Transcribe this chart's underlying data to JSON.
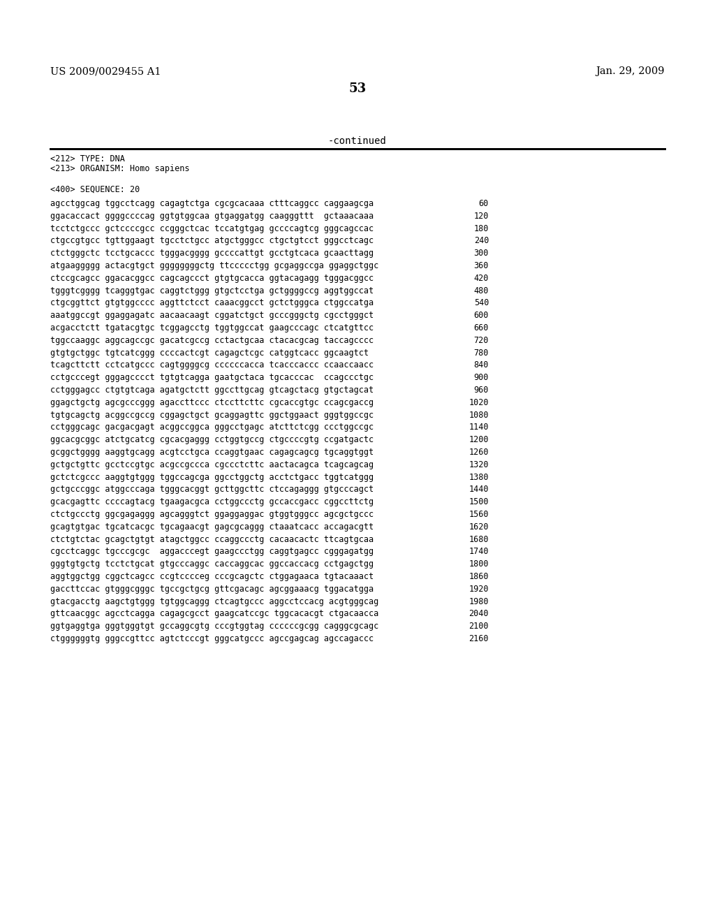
{
  "header_left": "US 2009/0029455 A1",
  "header_right": "Jan. 29, 2009",
  "page_number": "53",
  "continued_text": "-continued",
  "metadata": [
    "<212> TYPE: DNA",
    "<213> ORGANISM: Homo sapiens",
    "",
    "<400> SEQUENCE: 20"
  ],
  "sequence_lines": [
    [
      "agcctggcag tggcctcagg cagagtctga cgcgcacaaa ctttcaggcc caggaagcga",
      "60"
    ],
    [
      "ggacaccact ggggccccag ggtgtggcaa gtgaggatgg caagggttt  gctaaacaaa",
      "120"
    ],
    [
      "tcctctgccc gctccccgcc ccgggctcac tccatgtgag gccccagtcg gggcagccac",
      "180"
    ],
    [
      "ctgccgtgcc tgttggaagt tgcctctgcc atgctgggcc ctgctgtcct gggcctcagc",
      "240"
    ],
    [
      "ctctgggctc tcctgcaccc tgggacgggg gccccattgt gcctgtcaca gcaacttagg",
      "300"
    ],
    [
      "atgaaggggg actacgtgct ggggggggctg ttccccctgg gcgaggccga ggaggctggc",
      "360"
    ],
    [
      "ctccgcagcc ggacacggcc cagcagccct gtgtgcacca ggtacagagg tgggacggcc",
      "420"
    ],
    [
      "tgggtcgggg tcagggtgac caggtctggg gtgctcctga gctggggccg aggtggccat",
      "480"
    ],
    [
      "ctgcggttct gtgtggcccc aggttctcct caaacggcct gctctgggca ctggccatga",
      "540"
    ],
    [
      "aaatggccgt ggaggagatc aacaacaagt cggatctgct gcccgggctg cgcctgggct",
      "600"
    ],
    [
      "acgacctctt tgatacgtgc tcggagcctg tggtggccat gaagcccagc ctcatgttcc",
      "660"
    ],
    [
      "tggccaaggc aggcagccgc gacatcgccg cctactgcaa ctacacgcag taccagcccc",
      "720"
    ],
    [
      "gtgtgctggc tgtcatcggg ccccactcgt cagagctcgc catggtcacc ggcaagtct",
      "780"
    ],
    [
      "tcagcttctt cctcatgccc cagtggggcg ccccccacca tcacccaccc ccaaccaacc",
      "840"
    ],
    [
      "cctgcccegt gggagcccct tgtgtcagga gaatgctaca tgcacccac  ccagccctgc",
      "900"
    ],
    [
      "cctgggagcc ctgtgtcaga agatgctctt ggccttgcag gtcagctacg gtgctagcat",
      "960"
    ],
    [
      "ggagctgctg agcgcccggg agaccttccc ctccttcttc cgcaccgtgc ccagcgaccg",
      "1020"
    ],
    [
      "tgtgcagctg acggccgccg cggagctgct gcaggagttc ggctggaact gggtggccgc",
      "1080"
    ],
    [
      "cctgggcagc gacgacgagt acggccggca gggcctgagc atcttctcgg ccctggccgc",
      "1140"
    ],
    [
      "ggcacgcggc atctgcatcg cgcacgaggg cctggtgccg ctgccccgtg ccgatgactc",
      "1200"
    ],
    [
      "gcggctgggg aaggtgcagg acgtcctgca ccaggtgaac cagagcagcg tgcaggtggt",
      "1260"
    ],
    [
      "gctgctgttc gcctccgtgc acgccgccca cgccctcttc aactacagca tcagcagcag",
      "1320"
    ],
    [
      "gctctcgccc aaggtgtggg tggccagcga ggcctggctg acctctgacc tggtcatggg",
      "1380"
    ],
    [
      "gctgcccggc atggcccaga tgggcacggt gcttggcttc ctccagaggg gtgcccagct",
      "1440"
    ],
    [
      "gcacgagttc ccccagtacg tgaagacgca cctggccctg gccaccgacc cggccttctg",
      "1500"
    ],
    [
      "ctctgccctg ggcgagaggg agcagggtct ggaggaggac gtggtgggcc agcgctgccc",
      "1560"
    ],
    [
      "gcagtgtgac tgcatcacgc tgcagaacgt gagcgcaggg ctaaatcacc accagacgtt",
      "1620"
    ],
    [
      "ctctgtctac gcagctgtgt atagctggcc ccaggccctg cacaacactc ttcagtgcaa",
      "1680"
    ],
    [
      "cgcctcaggc tgcccgcgc  aggacccegt gaagccctgg caggtgagcc cgggagatgg",
      "1740"
    ],
    [
      "gggtgtgctg tcctctgcat gtgcccaggc caccaggcac ggccaccacg cctgagctgg",
      "1800"
    ],
    [
      "aggtggctgg cggctcagcc ccgtcccceg cccgcagctc ctggagaaca tgtacaaact",
      "1860"
    ],
    [
      "gaccttccac gtgggcgggc tgccgctgcg gttcgacagc agcggaaacg tggacatgga",
      "1920"
    ],
    [
      "gtacgacctg aagctgtggg tgtggcaggg ctcagtgccc aggcctccacg acgtgggcag",
      "1980"
    ],
    [
      "gttcaacggc agcctcagga cagagcgcct gaagcatccgc tggcacacgt ctgacaacca",
      "2040"
    ],
    [
      "ggtgaggtga gggtgggtgt gccaggcgtg cccgtggtag ccccccgcgg cagggcgcagc",
      "2100"
    ],
    [
      "ctggggggtg gggccgttcc agtctcccgt gggcatgccc agccgagcag agccagaccc",
      "2160"
    ]
  ],
  "background_color": "#ffffff",
  "text_color": "#000000",
  "font_size_header": 10.5,
  "font_size_body": 8.5,
  "font_size_page": 13,
  "font_size_continued": 10
}
